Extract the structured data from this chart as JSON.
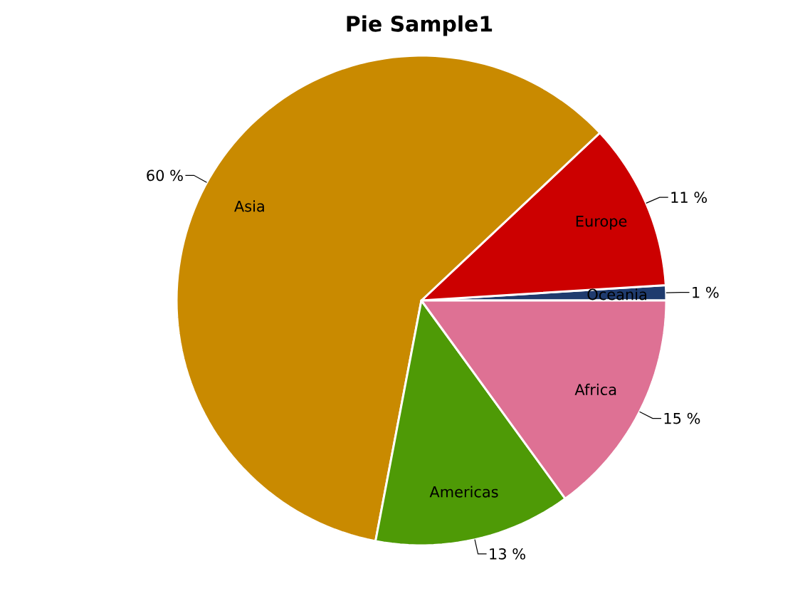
{
  "chart_data": {
    "type": "pie",
    "title": "Pie Sample1",
    "categories": [
      "Oceania",
      "Europe",
      "Asia",
      "Americas",
      "Africa"
    ],
    "values": [
      1,
      11,
      60,
      13,
      15
    ],
    "colors": [
      "#1f3b6e",
      "#cc0000",
      "#c98a00",
      "#4e9a06",
      "#de7194"
    ],
    "value_labels": [
      "1 %",
      "11 %",
      "60 %",
      "13 %",
      "15 %"
    ]
  }
}
